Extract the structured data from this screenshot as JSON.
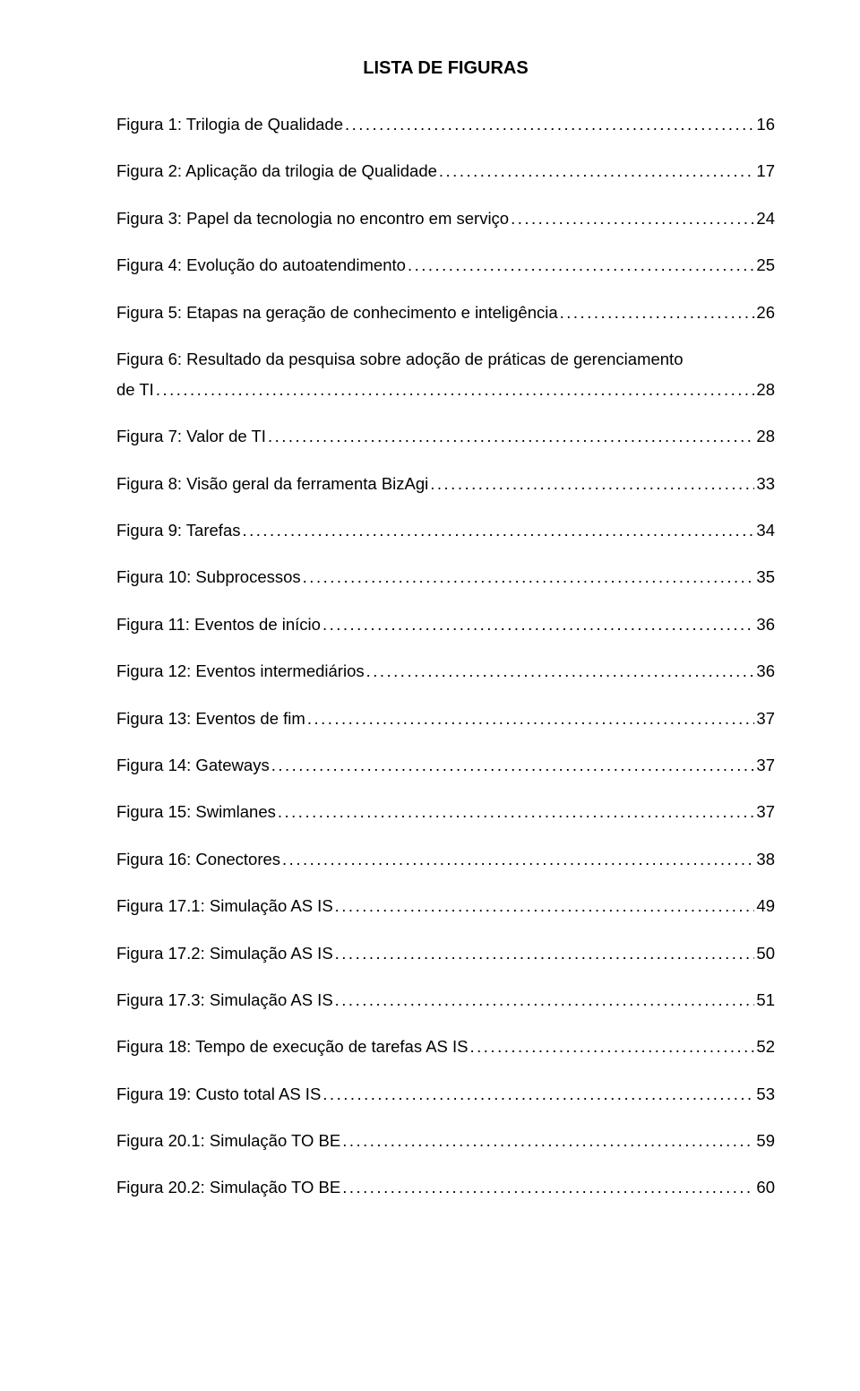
{
  "document": {
    "title": "LISTA DE FIGURAS",
    "background_color": "#ffffff",
    "text_color": "#000000",
    "font_family": "Arial",
    "title_fontsize": 20,
    "entry_fontsize": 18.5,
    "entries": [
      {
        "label": "Figura 1: Trilogia de Qualidade",
        "page": "16"
      },
      {
        "label": "Figura 2: Aplicação da trilogia de Qualidade",
        "page": "17"
      },
      {
        "label": "Figura 3: Papel da tecnologia no encontro em serviço",
        "page": "24"
      },
      {
        "label": "Figura 4: Evolução do autoatendimento",
        "page": "25"
      },
      {
        "label": "Figura 5: Etapas na geração de conhecimento e inteligência",
        "page": "26"
      },
      {
        "label_line1": "Figura 6: Resultado da pesquisa sobre adoção de práticas de gerenciamento",
        "label_line2": "de TI",
        "page": "28",
        "multiline": true
      },
      {
        "label": "Figura 7: Valor de TI",
        "page": "28"
      },
      {
        "label": "Figura 8: Visão geral da ferramenta BizAgi",
        "page": "33"
      },
      {
        "label": "Figura 9: Tarefas",
        "page": "34"
      },
      {
        "label": "Figura 10: Subprocessos",
        "page": "35"
      },
      {
        "label": "Figura 11: Eventos de início",
        "page": "36"
      },
      {
        "label": "Figura 12: Eventos intermediários",
        "page": "36"
      },
      {
        "label": "Figura 13: Eventos de fim",
        "page": "37"
      },
      {
        "label": "Figura 14: Gateways",
        "page": "37"
      },
      {
        "label": "Figura 15: Swimlanes",
        "page": "37"
      },
      {
        "label": "Figura 16: Conectores",
        "page": "38"
      },
      {
        "label": "Figura 17.1: Simulação AS IS",
        "page": "49"
      },
      {
        "label": "Figura 17.2: Simulação AS IS",
        "page": "50"
      },
      {
        "label": "Figura 17.3: Simulação AS IS",
        "page": "51"
      },
      {
        "label": "Figura 18: Tempo de execução de tarefas AS IS",
        "page": "52"
      },
      {
        "label": "Figura 19: Custo total AS IS",
        "page": "53"
      },
      {
        "label": "Figura 20.1: Simulação TO BE",
        "page": "59"
      },
      {
        "label": "Figura 20.2: Simulação TO BE",
        "page": "60"
      }
    ]
  }
}
